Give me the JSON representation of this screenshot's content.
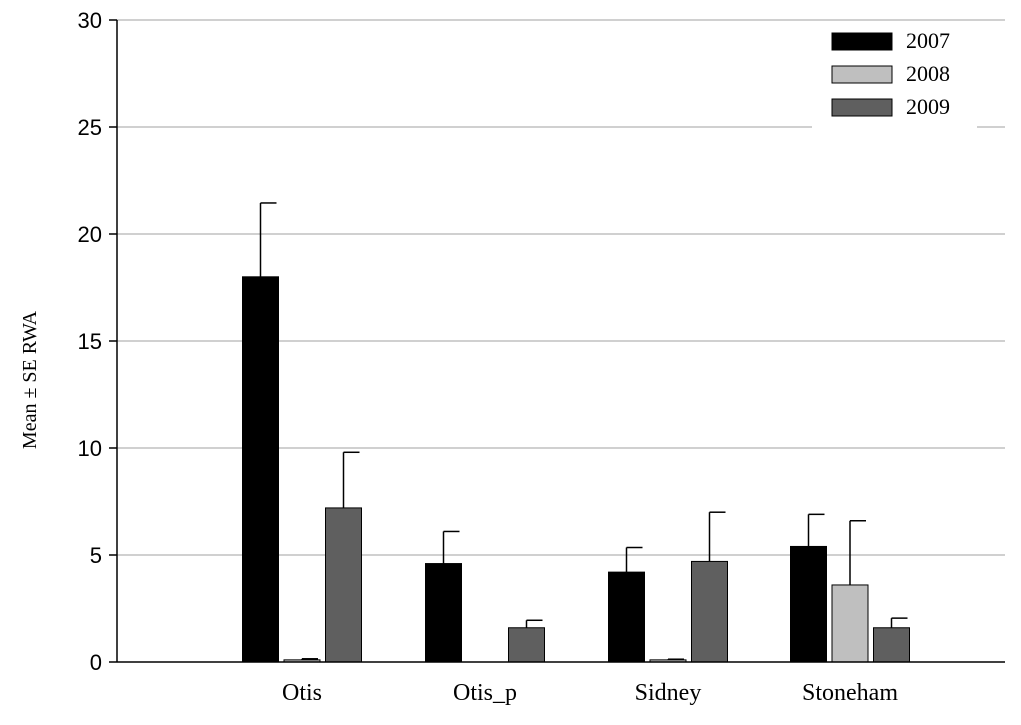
{
  "chart_data": {
    "type": "bar",
    "categories": [
      "Otis",
      "Otis_p",
      "Sidney",
      "Stoneham"
    ],
    "series": [
      {
        "name": "2007",
        "color": "#000000",
        "values": [
          18.0,
          4.6,
          4.2,
          5.4
        ],
        "errors": [
          3.45,
          1.5,
          1.15,
          1.5
        ]
      },
      {
        "name": "2008",
        "color": "#bfbfbf",
        "values": [
          0.1,
          0.0,
          0.1,
          3.6
        ],
        "errors": [
          0.05,
          0.0,
          0.03,
          3.0
        ]
      },
      {
        "name": "2009",
        "color": "#5f5f5f",
        "values": [
          7.2,
          1.6,
          4.7,
          1.6
        ],
        "errors": [
          2.6,
          0.35,
          2.3,
          0.45
        ]
      }
    ],
    "ylabel": "Mean ± SE RWA",
    "xlabel": "",
    "ylim": [
      0,
      30
    ],
    "yticks": [
      0,
      5,
      10,
      15,
      20,
      25,
      30
    ],
    "grid": true,
    "legend_position": "top-right"
  }
}
